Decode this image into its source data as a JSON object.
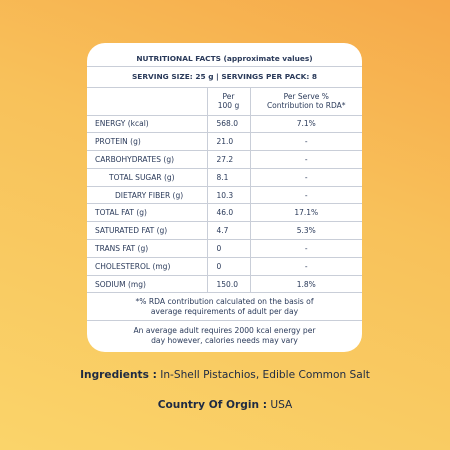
{
  "title": "NUTRITIONAL FACTS (approximate values)",
  "serving": "SERVING SIZE: 25 g | SERVINGS PER PACK: 8",
  "columns": {
    "per100_line1": "Per",
    "per100_line2": "100 g",
    "perserve_line1": "Per Serve %",
    "perserve_line2": "Contribution to RDA*"
  },
  "rows": [
    {
      "name": "ENERGY (kcal)",
      "per100": "568.0",
      "rda": "7.1%"
    },
    {
      "name": "PROTEIN (g)",
      "per100": "21.0",
      "rda": "-"
    },
    {
      "name": "CARBOHYDRATES (g)",
      "per100": "27.2",
      "rda": "-"
    },
    {
      "name": "TOTAL  SUGAR (g)",
      "per100": "8.1",
      "rda": "-"
    },
    {
      "name": "DIETARY FIBER (g)",
      "per100": "10.3",
      "rda": "-"
    },
    {
      "name": "TOTAL FAT (g)",
      "per100": "46.0",
      "rda": "17.1%"
    },
    {
      "name": "SATURATED FAT (g)",
      "per100": "4.7",
      "rda": "5.3%"
    },
    {
      "name": "TRANS FAT (g)",
      "per100": "0",
      "rda": "-"
    },
    {
      "name": "CHOLESTEROL (mg)",
      "per100": "0",
      "rda": "-"
    },
    {
      "name": "SODIUM (mg)",
      "per100": "150.0",
      "rda": "1.8%"
    }
  ],
  "note1_line1": "*% RDA contribution calculated on the basis of",
  "note1_line2": "average requirements of adult per day",
  "note2_line1": "An average adult requires 2000 kcal energy per",
  "note2_line2": "day however, calories needs may vary",
  "ingredients_label": "Ingredients :",
  "ingredients_value": "In-Shell Pistachios, Edible Common Salt",
  "country_label": "Country Of Orgin :",
  "country_value": "USA"
}
